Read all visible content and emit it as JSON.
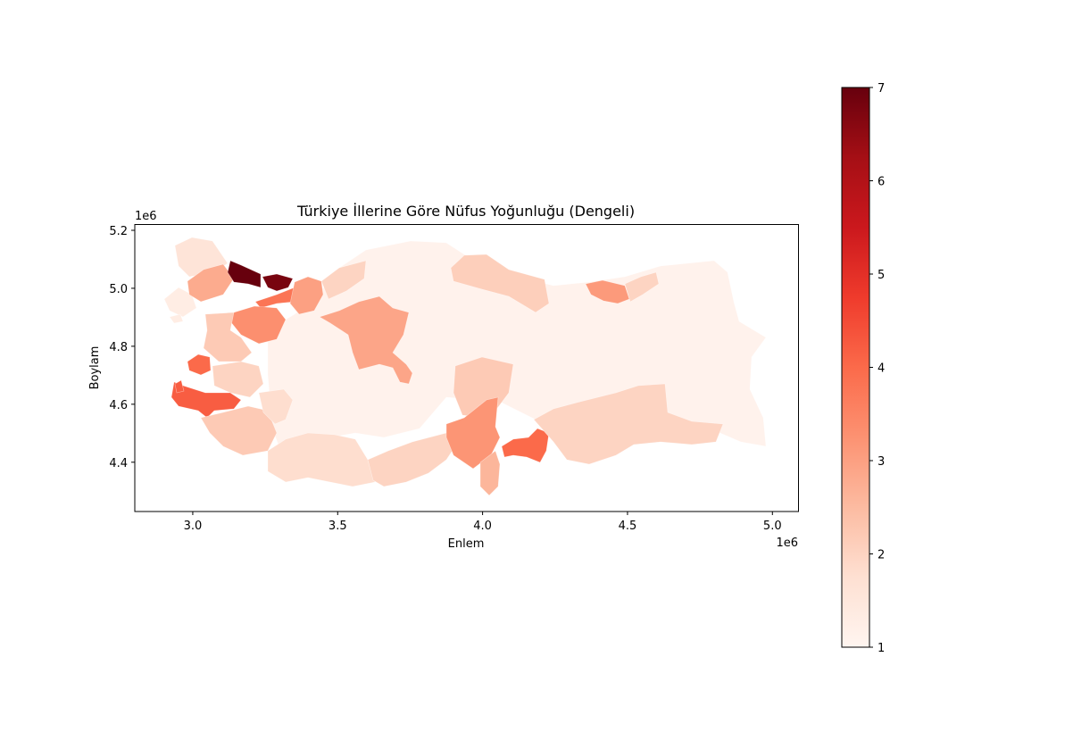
{
  "chart_data": {
    "type": "choropleth",
    "title": "Türkiye İllerine Göre Nüfus Yoğunluğu (Dengeli)",
    "xlabel": "Enlem",
    "ylabel": "Boylam",
    "x_offset_label": "1e6",
    "y_offset_label": "1e6",
    "xlim": [
      2.8,
      5.09
    ],
    "ylim": [
      4.23,
      5.22
    ],
    "x_ticks": [
      3.0,
      3.5,
      4.0,
      4.5,
      5.0
    ],
    "x_tick_labels": [
      "3.0",
      "3.5",
      "4.0",
      "4.5",
      "5.0"
    ],
    "y_ticks": [
      4.4,
      4.6,
      4.8,
      5.0,
      5.2
    ],
    "y_tick_labels": [
      "4.4",
      "4.6",
      "4.8",
      "5.0",
      "5.2"
    ],
    "colormap": "Reds",
    "colorbar": {
      "min": 1,
      "max": 7,
      "ticks": [
        1,
        2,
        3,
        4,
        5,
        6,
        7
      ],
      "tick_labels": [
        "1",
        "2",
        "3",
        "4",
        "5",
        "6",
        "7"
      ]
    },
    "regions": [
      {
        "name": "base",
        "value": 1.1
      },
      {
        "name": "thrace-north",
        "value": 1.6
      },
      {
        "name": "thrace-southwest",
        "value": 1.3
      },
      {
        "name": "thrace-east",
        "value": 2.8
      },
      {
        "name": "istanbul-west",
        "value": 7.0
      },
      {
        "name": "istanbul-east",
        "value": 6.8
      },
      {
        "name": "kocaeli",
        "value": 3.8
      },
      {
        "name": "sakarya",
        "value": 3.0
      },
      {
        "name": "bursa",
        "value": 3.3
      },
      {
        "name": "balikesir",
        "value": 2.2
      },
      {
        "name": "manisa",
        "value": 2.0
      },
      {
        "name": "izmir",
        "value": 4.2
      },
      {
        "name": "izmir-north",
        "value": 4.0
      },
      {
        "name": "aegean-south",
        "value": 2.2
      },
      {
        "name": "denizli",
        "value": 1.8
      },
      {
        "name": "antalya",
        "value": 1.8
      },
      {
        "name": "ankara",
        "value": 2.9
      },
      {
        "name": "duzce-bolu",
        "value": 2.0
      },
      {
        "name": "samsun",
        "value": 2.1
      },
      {
        "name": "trabzon",
        "value": 3.1
      },
      {
        "name": "rize",
        "value": 2.0
      },
      {
        "name": "mersin",
        "value": 2.0
      },
      {
        "name": "kayseri",
        "value": 2.2
      },
      {
        "name": "adana",
        "value": 3.2
      },
      {
        "name": "hatay",
        "value": 2.6
      },
      {
        "name": "gaziantep",
        "value": 4.0
      },
      {
        "name": "southeast",
        "value": 2.0
      }
    ]
  }
}
